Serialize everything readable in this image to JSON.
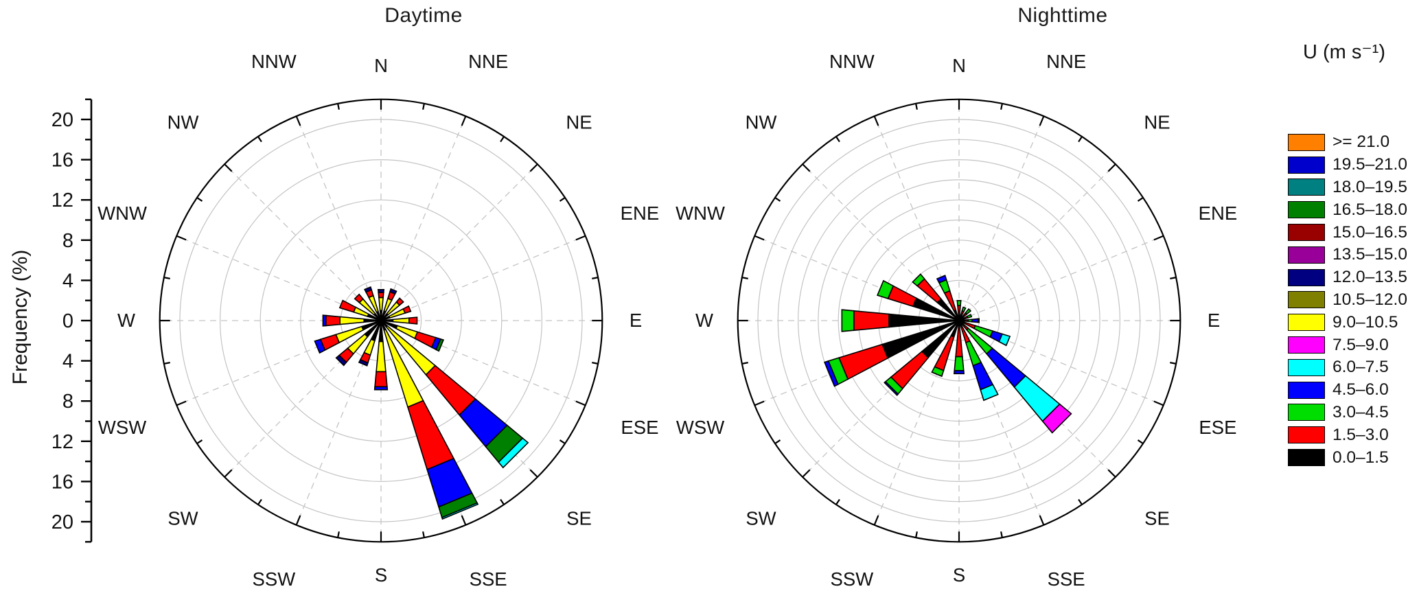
{
  "radial_axis": {
    "label": "Frequency (%)",
    "major_tick_labels": [
      "20",
      "16",
      "12",
      "8",
      "4",
      "0",
      "4",
      "8",
      "12",
      "16",
      "20"
    ],
    "major_step_pct": 4,
    "minor_step_pct": 2,
    "labeled_max_pct": 20,
    "outer_ring_pct": 22
  },
  "legend": {
    "title": "U (m s⁻¹)",
    "bins": [
      {
        "label": ">= 21.0",
        "color": "#FF8000"
      },
      {
        "label": "19.5–21.0",
        "color": "#0000CC"
      },
      {
        "label": "18.0–19.5",
        "color": "#008080"
      },
      {
        "label": "16.5–18.0",
        "color": "#008000"
      },
      {
        "label": "15.0–16.5",
        "color": "#990000"
      },
      {
        "label": "13.5–15.0",
        "color": "#990099"
      },
      {
        "label": "12.0–13.5",
        "color": "#000080"
      },
      {
        "label": "10.5–12.0",
        "color": "#808000"
      },
      {
        "label": "9.0–10.5",
        "color": "#FFFF00"
      },
      {
        "label": "7.5–9.0",
        "color": "#FF00FF"
      },
      {
        "label": "6.0–7.5",
        "color": "#00FFFF"
      },
      {
        "label": "4.5–6.0",
        "color": "#0000FF"
      },
      {
        "label": "3.0–4.5",
        "color": "#00DD00"
      },
      {
        "label": "1.5–3.0",
        "color": "#FF0000"
      },
      {
        "label": "0.0–1.5",
        "color": "#000000"
      }
    ]
  },
  "chart_data": {
    "type": "bar",
    "subtype": "windrose-stacked-polar-pair",
    "units": "frequency percent by wind direction, stacked by wind speed bin U (m s-1)",
    "directions": [
      "N",
      "NNE",
      "NE",
      "ENE",
      "E",
      "ESE",
      "SE",
      "SSE",
      "S",
      "SSW",
      "SW",
      "WSW",
      "W",
      "WNW",
      "NW",
      "NNW"
    ],
    "radial_range_pct": [
      0,
      22
    ],
    "panels": [
      {
        "name": "Daytime",
        "grid_step_pct": 4,
        "bars": [
          {
            "dir": "N",
            "segments": [
              {
                "bin": "0.0–1.5",
                "v": 1.0
              },
              {
                "bin": "9.0–10.5",
                "v": 1.3
              },
              {
                "bin": "1.5–3.0",
                "v": 0.5
              },
              {
                "bin": "12.0–13.5",
                "v": 0.3
              }
            ]
          },
          {
            "dir": "NNE",
            "segments": [
              {
                "bin": "0.0–1.5",
                "v": 1.0
              },
              {
                "bin": "9.0–10.5",
                "v": 1.3
              },
              {
                "bin": "1.5–3.0",
                "v": 0.7
              },
              {
                "bin": "12.0–13.5",
                "v": 0.3
              }
            ]
          },
          {
            "dir": "NE",
            "segments": [
              {
                "bin": "0.0–1.5",
                "v": 0.9
              },
              {
                "bin": "9.0–10.5",
                "v": 1.5
              },
              {
                "bin": "1.5–3.0",
                "v": 0.5
              }
            ]
          },
          {
            "dir": "ENE",
            "segments": [
              {
                "bin": "0.0–1.5",
                "v": 0.9
              },
              {
                "bin": "9.0–10.5",
                "v": 1.6
              },
              {
                "bin": "1.5–3.0",
                "v": 0.6
              }
            ]
          },
          {
            "dir": "E",
            "segments": [
              {
                "bin": "0.0–1.5",
                "v": 1.2
              },
              {
                "bin": "9.0–10.5",
                "v": 1.6
              },
              {
                "bin": "1.5–3.0",
                "v": 0.8
              }
            ]
          },
          {
            "dir": "ESE",
            "segments": [
              {
                "bin": "0.0–1.5",
                "v": 1.7
              },
              {
                "bin": "9.0–10.5",
                "v": 2.1
              },
              {
                "bin": "1.5–3.0",
                "v": 1.9
              },
              {
                "bin": "4.5–6.0",
                "v": 0.5
              },
              {
                "bin": "16.5–18.0",
                "v": 0.3
              }
            ]
          },
          {
            "dir": "SE",
            "segments": [
              {
                "bin": "0.0–1.5",
                "v": 0.8
              },
              {
                "bin": "9.0–10.5",
                "v": 6.2
              },
              {
                "bin": "1.5–3.0",
                "v": 5.2
              },
              {
                "bin": "4.5–6.0",
                "v": 4.1
              },
              {
                "bin": "16.5–18.0",
                "v": 2.0
              },
              {
                "bin": "6.0–7.5",
                "v": 0.7
              }
            ]
          },
          {
            "dir": "SSE",
            "segments": [
              {
                "bin": "0.0–1.5",
                "v": 1.0
              },
              {
                "bin": "9.0–10.5",
                "v": 8.0
              },
              {
                "bin": "1.5–3.0",
                "v": 6.5
              },
              {
                "bin": "4.5–6.0",
                "v": 3.9
              },
              {
                "bin": "16.5–18.0",
                "v": 1.1
              },
              {
                "bin": "6.0–7.5",
                "v": 0.15
              }
            ]
          },
          {
            "dir": "S",
            "segments": [
              {
                "bin": "0.0–1.5",
                "v": 2.1
              },
              {
                "bin": "9.0–10.5",
                "v": 3.0
              },
              {
                "bin": "1.5–3.0",
                "v": 1.5
              },
              {
                "bin": "4.5–6.0",
                "v": 0.3
              }
            ]
          },
          {
            "dir": "SSW",
            "segments": [
              {
                "bin": "0.0–1.5",
                "v": 2.1
              },
              {
                "bin": "9.0–10.5",
                "v": 1.5
              },
              {
                "bin": "1.5–3.0",
                "v": 0.8
              },
              {
                "bin": "12.0–13.5",
                "v": 0.3
              }
            ]
          },
          {
            "dir": "SW",
            "segments": [
              {
                "bin": "0.0–1.5",
                "v": 2.1
              },
              {
                "bin": "9.0–10.5",
                "v": 2.2
              },
              {
                "bin": "1.5–3.0",
                "v": 1.1
              },
              {
                "bin": "12.0–13.5",
                "v": 0.4
              }
            ]
          },
          {
            "dir": "WSW",
            "segments": [
              {
                "bin": "0.0–1.5",
                "v": 2.0
              },
              {
                "bin": "9.0–10.5",
                "v": 2.7
              },
              {
                "bin": "1.5–3.0",
                "v": 1.6
              },
              {
                "bin": "4.5–6.0",
                "v": 0.6
              }
            ]
          },
          {
            "dir": "W",
            "segments": [
              {
                "bin": "0.0–1.5",
                "v": 1.7
              },
              {
                "bin": "9.0–10.5",
                "v": 2.4
              },
              {
                "bin": "1.5–3.0",
                "v": 1.4
              },
              {
                "bin": "4.5–6.0",
                "v": 0.3
              }
            ]
          },
          {
            "dir": "WNW",
            "segments": [
              {
                "bin": "0.0–1.5",
                "v": 1.4
              },
              {
                "bin": "9.0–10.5",
                "v": 1.45
              },
              {
                "bin": "1.5–3.0",
                "v": 1.45
              }
            ]
          },
          {
            "dir": "NW",
            "segments": [
              {
                "bin": "0.0–1.5",
                "v": 0.9
              },
              {
                "bin": "9.0–10.5",
                "v": 1.9
              },
              {
                "bin": "1.5–3.0",
                "v": 0.6
              }
            ]
          },
          {
            "dir": "NNW",
            "segments": [
              {
                "bin": "0.0–1.5",
                "v": 0.95
              },
              {
                "bin": "9.0–10.5",
                "v": 1.65
              },
              {
                "bin": "1.5–3.0",
                "v": 0.6
              },
              {
                "bin": "12.0–13.5",
                "v": 0.3
              }
            ]
          }
        ]
      },
      {
        "name": "Nighttime",
        "grid_step_pct": 2,
        "bars": [
          {
            "dir": "N",
            "segments": [
              {
                "bin": "0.0–1.5",
                "v": 0.6
              },
              {
                "bin": "1.5–3.0",
                "v": 0.9
              },
              {
                "bin": "3.0–4.5",
                "v": 0.5
              }
            ]
          },
          {
            "dir": "NNE",
            "segments": [
              {
                "bin": "0.0–1.5",
                "v": 0.4
              },
              {
                "bin": "1.5–3.0",
                "v": 0.6
              },
              {
                "bin": "3.0–4.5",
                "v": 0.4
              }
            ]
          },
          {
            "dir": "NE",
            "segments": [
              {
                "bin": "0.0–1.5",
                "v": 0.3
              },
              {
                "bin": "1.5–3.0",
                "v": 0.7
              },
              {
                "bin": "3.0–4.5",
                "v": 0.5
              }
            ]
          },
          {
            "dir": "ENE",
            "segments": [
              {
                "bin": "0.0–1.5",
                "v": 0.3
              },
              {
                "bin": "1.5–3.0",
                "v": 0.6
              },
              {
                "bin": "3.0–4.5",
                "v": 0.4
              }
            ]
          },
          {
            "dir": "E",
            "segments": [
              {
                "bin": "0.0–1.5",
                "v": 0.4
              },
              {
                "bin": "1.5–3.0",
                "v": 0.5
              },
              {
                "bin": "3.0–4.5",
                "v": 0.4
              },
              {
                "bin": "4.5–6.0",
                "v": 0.6
              },
              {
                "bin": "6.0–7.5",
                "v": 0.1
              }
            ]
          },
          {
            "dir": "ESE",
            "segments": [
              {
                "bin": "0.0–1.5",
                "v": 0.5
              },
              {
                "bin": "1.5–3.0",
                "v": 1.2
              },
              {
                "bin": "3.0–4.5",
                "v": 1.8
              },
              {
                "bin": "4.5–6.0",
                "v": 1.0
              },
              {
                "bin": "6.0–7.5",
                "v": 0.8
              }
            ]
          },
          {
            "dir": "SE",
            "segments": [
              {
                "bin": "0.0–1.5",
                "v": 0.4
              },
              {
                "bin": "1.5–3.0",
                "v": 0.8
              },
              {
                "bin": "3.0–4.5",
                "v": 3.1
              },
              {
                "bin": "4.5–6.0",
                "v": 4.3
              },
              {
                "bin": "6.0–7.5",
                "v": 4.4
              },
              {
                "bin": "7.5–9.0",
                "v": 1.5
              }
            ]
          },
          {
            "dir": "SSE",
            "segments": [
              {
                "bin": "0.0–1.5",
                "v": 0.3
              },
              {
                "bin": "1.5–3.0",
                "v": 2.0
              },
              {
                "bin": "3.0–4.5",
                "v": 2.4
              },
              {
                "bin": "4.5–6.0",
                "v": 2.5
              },
              {
                "bin": "6.0–7.5",
                "v": 1.1
              }
            ]
          },
          {
            "dir": "S",
            "segments": [
              {
                "bin": "0.0–1.5",
                "v": 0.6
              },
              {
                "bin": "1.5–3.0",
                "v": 3.0
              },
              {
                "bin": "3.0–4.5",
                "v": 1.4
              },
              {
                "bin": "4.5–6.0",
                "v": 0.3
              }
            ]
          },
          {
            "dir": "SSW",
            "segments": [
              {
                "bin": "0.0–1.5",
                "v": 1.7
              },
              {
                "bin": "1.5–3.0",
                "v": 3.5
              },
              {
                "bin": "3.0–4.5",
                "v": 0.6
              }
            ]
          },
          {
            "dir": "SW",
            "segments": [
              {
                "bin": "0.0–1.5",
                "v": 4.8
              },
              {
                "bin": "1.5–3.0",
                "v": 4.0
              },
              {
                "bin": "3.0–4.5",
                "v": 0.7
              },
              {
                "bin": "4.5–6.0",
                "v": 0.15
              }
            ]
          },
          {
            "dir": "WSW",
            "segments": [
              {
                "bin": "0.0–1.5",
                "v": 8.0
              },
              {
                "bin": "1.5–3.0",
                "v": 4.5
              },
              {
                "bin": "3.0–4.5",
                "v": 1.1
              },
              {
                "bin": "4.5–6.0",
                "v": 0.4
              }
            ]
          },
          {
            "dir": "W",
            "segments": [
              {
                "bin": "0.0–1.5",
                "v": 7.0
              },
              {
                "bin": "1.5–3.0",
                "v": 3.5
              },
              {
                "bin": "3.0–4.5",
                "v": 1.2
              }
            ]
          },
          {
            "dir": "WNW",
            "segments": [
              {
                "bin": "0.0–1.5",
                "v": 4.8
              },
              {
                "bin": "1.5–3.0",
                "v": 2.6
              },
              {
                "bin": "3.0–4.5",
                "v": 1.1
              }
            ]
          },
          {
            "dir": "NW",
            "segments": [
              {
                "bin": "0.0–1.5",
                "v": 2.8
              },
              {
                "bin": "1.5–3.0",
                "v": 2.6
              },
              {
                "bin": "3.0–4.5",
                "v": 0.6
              }
            ]
          },
          {
            "dir": "NNW",
            "segments": [
              {
                "bin": "0.0–1.5",
                "v": 1.1
              },
              {
                "bin": "1.5–3.0",
                "v": 2.0
              },
              {
                "bin": "3.0–4.5",
                "v": 1.15
              },
              {
                "bin": "4.5–6.0",
                "v": 0.45
              }
            ]
          }
        ]
      }
    ]
  }
}
